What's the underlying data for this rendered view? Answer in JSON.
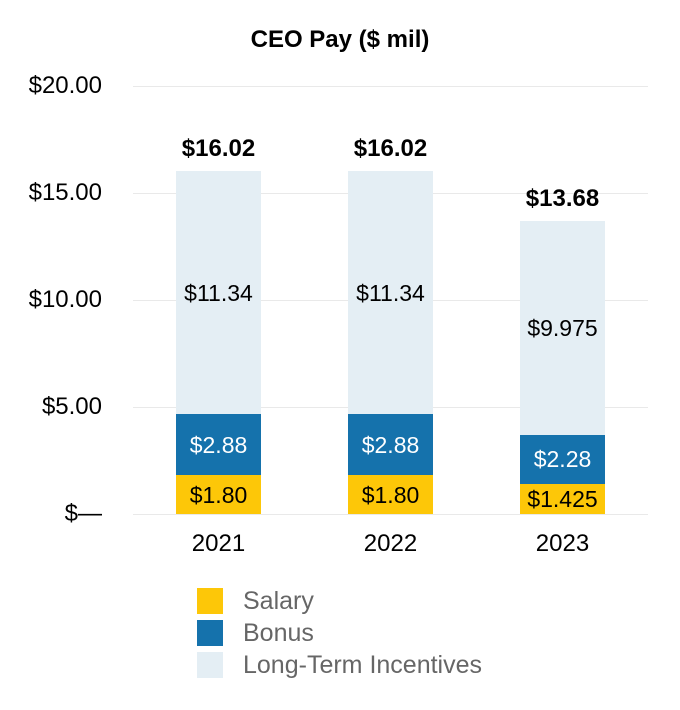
{
  "title": "CEO Pay ($ mil)",
  "colors": {
    "salary": "#fdc708",
    "bonus": "#1572ac",
    "lti": "#e4eef4",
    "grid": "#e9e9e9",
    "legend_text": "#666666",
    "label_on_bonus": "#ffffff",
    "label_default": "#000000"
  },
  "chart_data": {
    "type": "bar",
    "stacked": true,
    "title": "CEO Pay ($ mil)",
    "categories": [
      "2021",
      "2022",
      "2023"
    ],
    "series": [
      {
        "name": "Salary",
        "color_key": "salary",
        "values": [
          1.8,
          1.8,
          1.425
        ],
        "labels": [
          "$1.80",
          "$1.80",
          "$1.425"
        ],
        "label_color": "#000000"
      },
      {
        "name": "Bonus",
        "color_key": "bonus",
        "values": [
          2.88,
          2.88,
          2.28
        ],
        "labels": [
          "$2.88",
          "$2.88",
          "$2.28"
        ],
        "label_color": "#ffffff"
      },
      {
        "name": "Long-Term Incentives",
        "color_key": "lti",
        "values": [
          11.34,
          11.34,
          9.975
        ],
        "labels": [
          "$11.34",
          "$11.34",
          "$9.975"
        ],
        "label_color": "#000000"
      }
    ],
    "totals": [
      16.02,
      16.02,
      13.68
    ],
    "total_labels": [
      "$16.02",
      "$16.02",
      "$13.68"
    ],
    "y_ticks": {
      "values": [
        0,
        5,
        10,
        15,
        20
      ],
      "labels": [
        "$—",
        "$5.00",
        "$10.00",
        "$15.00",
        "$20.00"
      ]
    },
    "ylim": [
      0,
      20
    ],
    "grid": "horizontal",
    "legend_position": "bottom-left"
  },
  "legend": {
    "items": [
      {
        "label": "Salary",
        "color_key": "salary"
      },
      {
        "label": "Bonus",
        "color_key": "bonus"
      },
      {
        "label": "Long-Term Incentives",
        "color_key": "lti"
      }
    ]
  }
}
